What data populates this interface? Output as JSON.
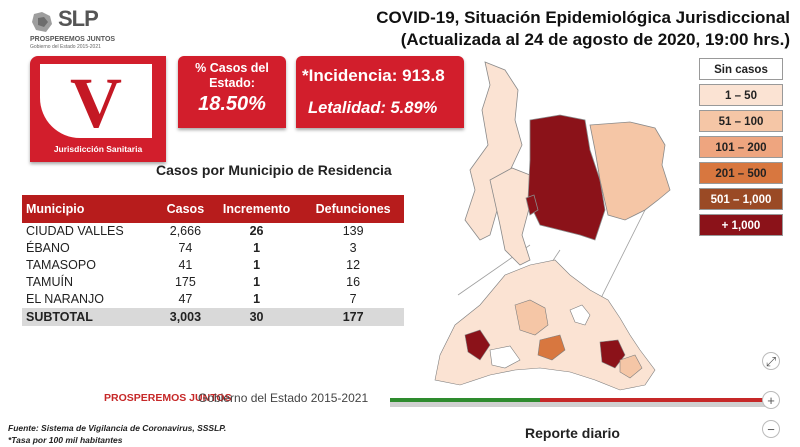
{
  "header": {
    "logo_text": "SLP",
    "logo_line1": "PROSPEREMOS JUNTOS",
    "logo_line2": "Gobierno del Estado 2015-2021",
    "title_line1": "COVID-19, Situación Epidemiológica Jurisdiccional",
    "title_line2": "(Actualizada al 24 de agosto de 2020, 19:00 hrs.)"
  },
  "jurisdiction": {
    "letter": "V",
    "label": "Jurisdicción Sanitaria"
  },
  "kpis": {
    "pct_label": "% Casos del Estado:",
    "pct_value": "18.50%",
    "incidence": "*Incidencia: 913.8",
    "lethality": "Letalidad: 5.89%"
  },
  "table": {
    "title": "Casos por Municipio  de Residencia",
    "headers": [
      "Municipio",
      "Casos",
      "Incremento",
      "Defunciones"
    ],
    "rows": [
      {
        "municipio": "CIUDAD VALLES",
        "casos": "2,666",
        "incremento": "26",
        "defunciones": "139"
      },
      {
        "municipio": "ÉBANO",
        "casos": "74",
        "incremento": "1",
        "defunciones": "3"
      },
      {
        "municipio": "TAMASOPO",
        "casos": "41",
        "incremento": "1",
        "defunciones": "12"
      },
      {
        "municipio": "TAMUÍN",
        "casos": "175",
        "incremento": "1",
        "defunciones": "16"
      },
      {
        "municipio": "EL NARANJO",
        "casos": "47",
        "incremento": "1",
        "defunciones": "7"
      }
    ],
    "subtotal": {
      "municipio": "SUBTOTAL",
      "casos": "3,003",
      "incremento": "30",
      "defunciones": "177"
    }
  },
  "legend": [
    {
      "label": "Sin casos",
      "color": "#ffffff",
      "text_color": "#222222"
    },
    {
      "label": "1 – 50",
      "color": "#fbe3d3",
      "text_color": "#222222"
    },
    {
      "label": "51 – 100",
      "color": "#f5c6a6",
      "text_color": "#222222"
    },
    {
      "label": "101 – 200",
      "color": "#eea57f",
      "text_color": "#222222"
    },
    {
      "label": "201 – 500",
      "color": "#d8773f",
      "text_color": "#222222"
    },
    {
      "label": "501 – 1,000",
      "color": "#9a4a25",
      "text_color": "#ffffff"
    },
    {
      "label": "+ 1,000",
      "color": "#8b1219",
      "text_color": "#ffffff"
    }
  ],
  "footer": {
    "brand_bold": "PROSPEREMOS JUNTOS",
    "brand_rest": "Gobierno del Estado 2015-2021",
    "source": "Fuente: Sistema de Vigilancia de Coronavirus, SSSLP.",
    "note": "*Tasa por 100 mil habitantes",
    "report": "Reporte diario"
  },
  "controls": {
    "fit": "⤢",
    "zoom_in": "+",
    "zoom_out": "−"
  }
}
